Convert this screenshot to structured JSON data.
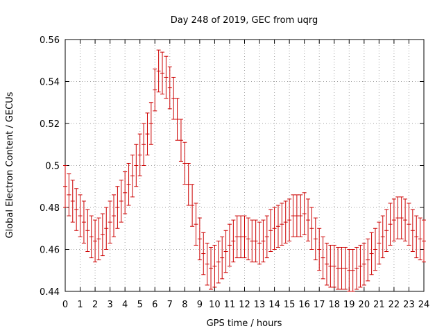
{
  "chart_data": {
    "type": "line",
    "title": "Day 248 of 2019, GEC from uqrg",
    "xlabel": "GPS time / hours",
    "ylabel": "Global Electron Content / GECUs",
    "xlim": [
      0,
      24
    ],
    "ylim": [
      0.44,
      0.56
    ],
    "x_ticks": [
      "0",
      "1",
      "2",
      "3",
      "4",
      "5",
      "6",
      "7",
      "8",
      "9",
      "10",
      "11",
      "12",
      "13",
      "14",
      "15",
      "16",
      "17",
      "18",
      "19",
      "20",
      "21",
      "22",
      "23",
      "24"
    ],
    "y_ticks": [
      "0.44",
      "0.46",
      "0.48",
      "0.5",
      "0.52",
      "0.54",
      "0.56"
    ],
    "grid": true,
    "error_bar": 0.01,
    "series_color": "#cc0000",
    "x": [
      0,
      0.25,
      0.5,
      0.75,
      1,
      1.25,
      1.5,
      1.75,
      2,
      2.25,
      2.5,
      2.75,
      3,
      3.25,
      3.5,
      3.75,
      4,
      4.25,
      4.5,
      4.75,
      5,
      5.25,
      5.5,
      5.75,
      6,
      6.25,
      6.5,
      6.75,
      7,
      7.25,
      7.5,
      7.75,
      8,
      8.25,
      8.5,
      8.75,
      9,
      9.25,
      9.5,
      9.75,
      10,
      10.25,
      10.5,
      10.75,
      11,
      11.25,
      11.5,
      11.75,
      12,
      12.25,
      12.5,
      12.75,
      13,
      13.25,
      13.5,
      13.75,
      14,
      14.25,
      14.5,
      14.75,
      15,
      15.25,
      15.5,
      15.75,
      16,
      16.25,
      16.5,
      16.75,
      17,
      17.25,
      17.5,
      17.75,
      18,
      18.25,
      18.5,
      18.75,
      19,
      19.25,
      19.5,
      19.75,
      20,
      20.25,
      20.5,
      20.75,
      21,
      21.25,
      21.5,
      21.75,
      22,
      22.25,
      22.5,
      22.75,
      23,
      23.25,
      23.5,
      23.75,
      24
    ],
    "y": [
      0.49,
      0.486,
      0.483,
      0.479,
      0.476,
      0.473,
      0.469,
      0.466,
      0.464,
      0.465,
      0.467,
      0.47,
      0.473,
      0.476,
      0.48,
      0.483,
      0.487,
      0.491,
      0.495,
      0.5,
      0.505,
      0.51,
      0.515,
      0.52,
      0.536,
      0.545,
      0.544,
      0.542,
      0.537,
      0.532,
      0.522,
      0.512,
      0.501,
      0.491,
      0.481,
      0.472,
      0.465,
      0.458,
      0.453,
      0.451,
      0.452,
      0.454,
      0.456,
      0.459,
      0.462,
      0.464,
      0.466,
      0.466,
      0.466,
      0.465,
      0.464,
      0.464,
      0.463,
      0.464,
      0.466,
      0.469,
      0.47,
      0.471,
      0.472,
      0.473,
      0.474,
      0.476,
      0.476,
      0.476,
      0.477,
      0.474,
      0.47,
      0.465,
      0.46,
      0.456,
      0.453,
      0.452,
      0.452,
      0.451,
      0.451,
      0.451,
      0.45,
      0.45,
      0.451,
      0.452,
      0.453,
      0.455,
      0.458,
      0.46,
      0.463,
      0.466,
      0.469,
      0.472,
      0.474,
      0.475,
      0.475,
      0.474,
      0.472,
      0.469,
      0.466,
      0.465,
      0.464
    ]
  }
}
